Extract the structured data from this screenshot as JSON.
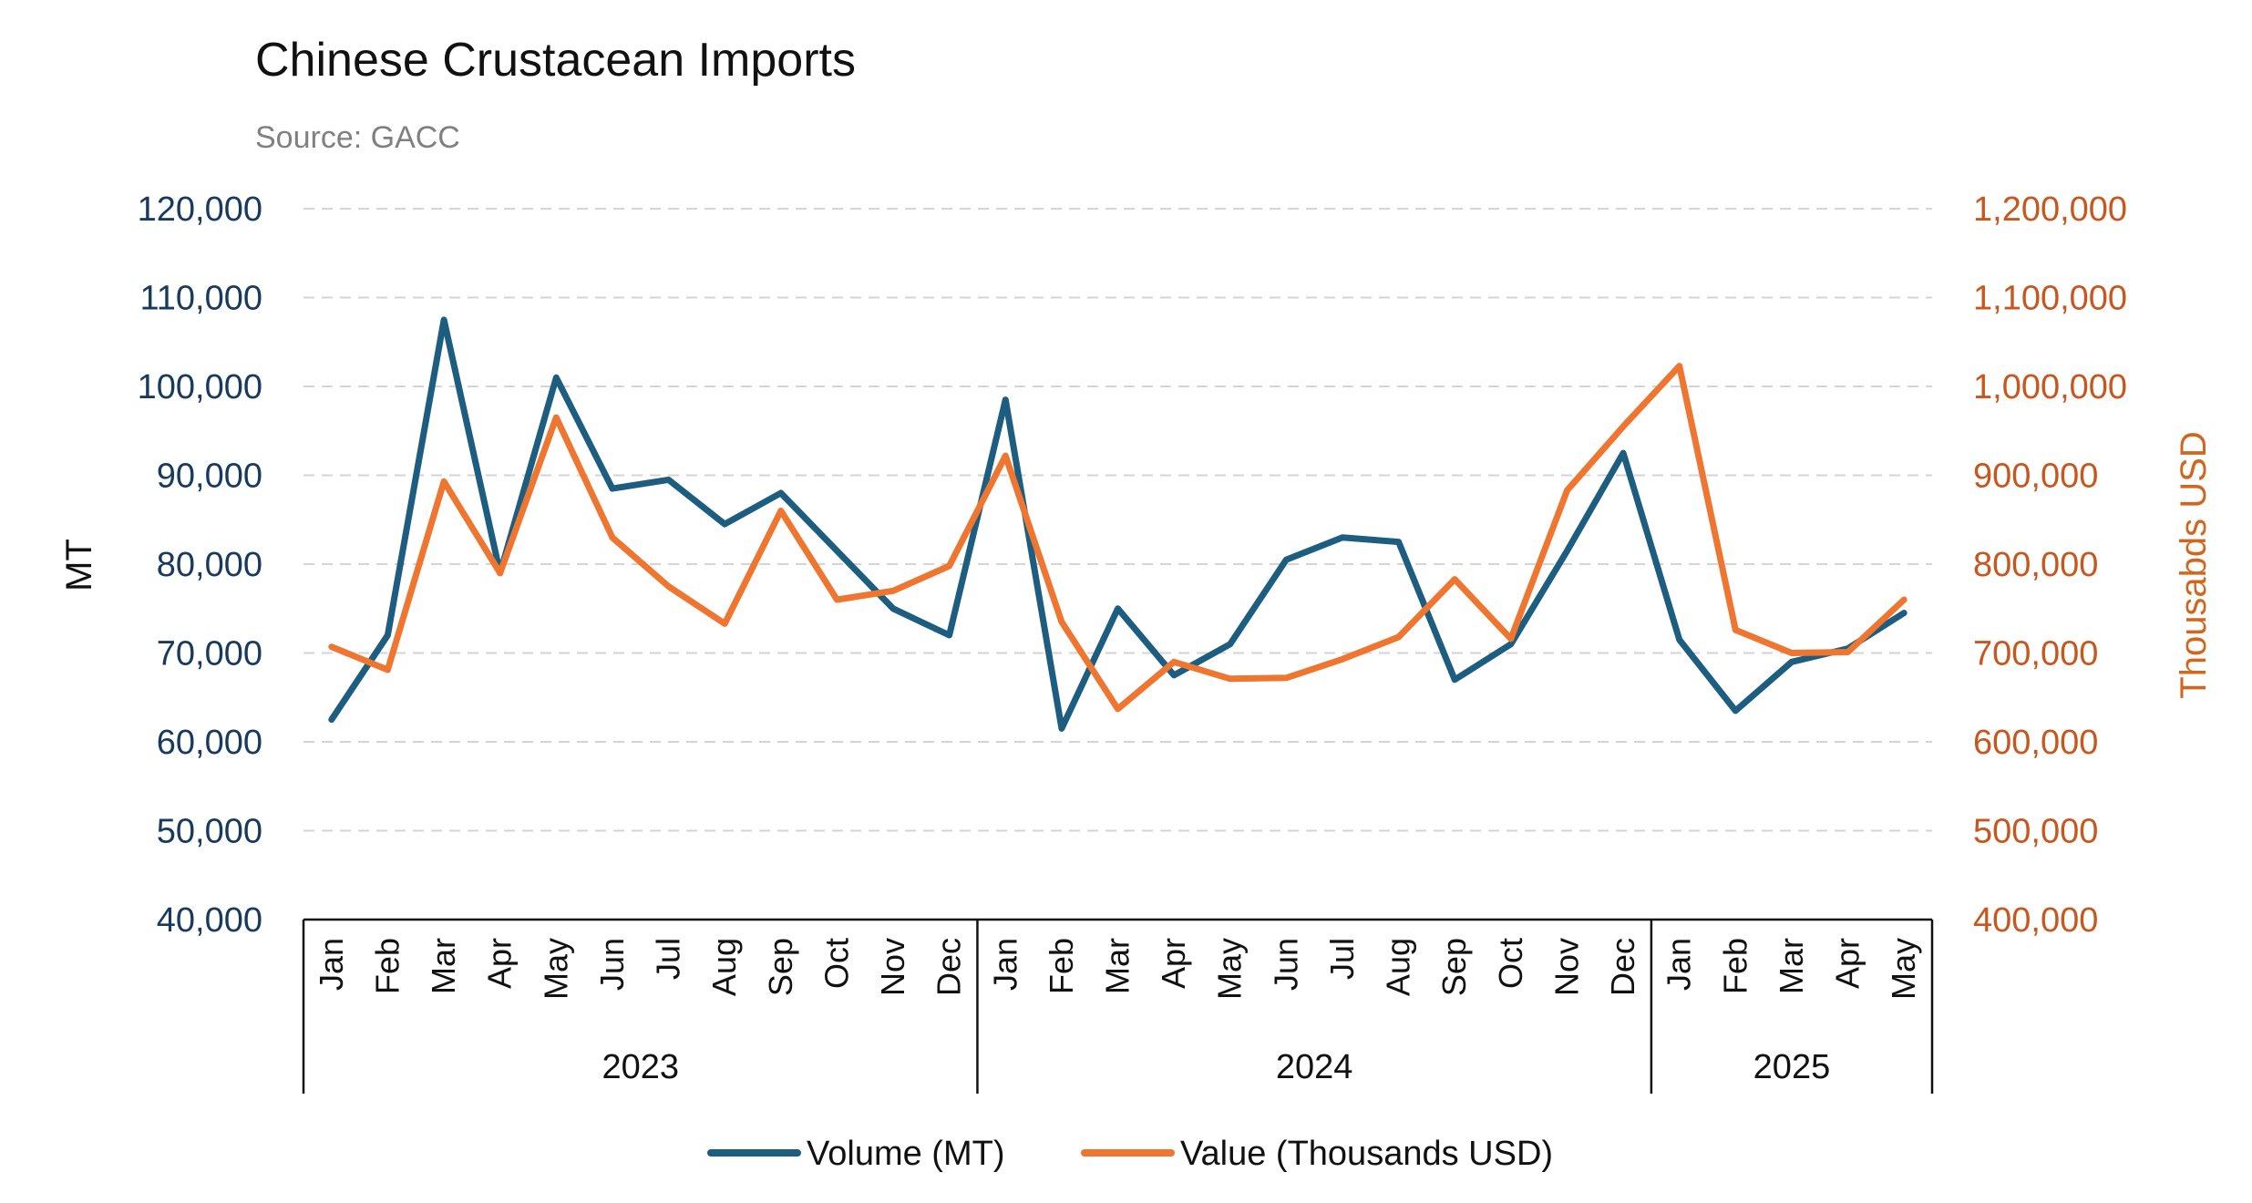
{
  "chart_data": {
    "type": "line",
    "title": "Chinese Crustacean Imports",
    "subtitle": "Source: GACC",
    "ylabel": "MT",
    "y2label": "Thousabds USD",
    "ylim": [
      40000,
      120000
    ],
    "y2lim": [
      400000,
      1200000
    ],
    "yticks": [
      "120,000",
      "110,000",
      "100,000",
      "90,000",
      "80,000",
      "70,000",
      "60,000",
      "50,000",
      "40,000"
    ],
    "y2ticks": [
      "1,200,000",
      "1,100,000",
      "1,000,000",
      "900,000",
      "800,000",
      "700,000",
      "600,000",
      "500,000",
      "400,000"
    ],
    "grid": true,
    "legend_position": "bottom",
    "categories": [
      "Jan",
      "Feb",
      "Mar",
      "Apr",
      "May",
      "Jun",
      "Jul",
      "Aug",
      "Sep",
      "Oct",
      "Nov",
      "Dec",
      "Jan",
      "Feb",
      "Mar",
      "Apr",
      "May",
      "Jun",
      "Jul",
      "Aug",
      "Sep",
      "Oct",
      "Nov",
      "Dec",
      "Jan",
      "Feb",
      "Mar",
      "Apr",
      "May"
    ],
    "groups": [
      {
        "label": "2023",
        "count": 12
      },
      {
        "label": "2024",
        "count": 12
      },
      {
        "label": "2025",
        "count": 5
      }
    ],
    "series": [
      {
        "name": "Volume (MT)",
        "axis": "left",
        "color": "#1d5d80",
        "values": [
          62500,
          72000,
          107500,
          79000,
          101000,
          88500,
          89500,
          84500,
          88000,
          81500,
          75000,
          72000,
          98500,
          61500,
          75000,
          67500,
          71000,
          80500,
          83000,
          82500,
          67000,
          71000,
          81500,
          92500,
          71500,
          63500,
          69000,
          70500,
          74500
        ]
      },
      {
        "name": "Value (Thousands USD)",
        "axis": "right",
        "color": "#ee7630",
        "values": [
          707000,
          681000,
          893000,
          790000,
          965000,
          830000,
          775000,
          733000,
          860000,
          760000,
          770000,
          798000,
          922000,
          735000,
          637000,
          690000,
          671000,
          672000,
          693000,
          718000,
          783000,
          716000,
          883000,
          955000,
          1023000,
          726000,
          700000,
          701000,
          760000
        ]
      }
    ]
  }
}
